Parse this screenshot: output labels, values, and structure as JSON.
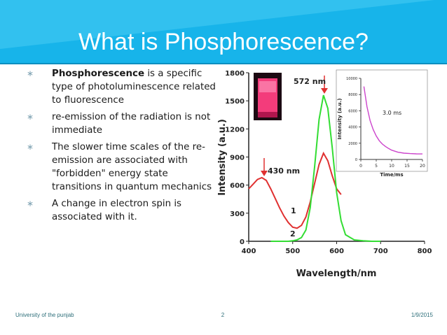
{
  "slide": {
    "title": "What is Phosphorescence?",
    "bullets": [
      {
        "bold": "Phosphorescence",
        "text": " is a specific type of photoluminescence related to fluorescence"
      },
      {
        "bold": "",
        "text": "re-emission of  the radiation is not immediate"
      },
      {
        "bold": "",
        "text": "The slower time scales of the re-emission are associated with \"forbidden\" energy state transitions in quantum mechanics"
      },
      {
        "bold": "",
        "text": "A change in electron spin is associated with it."
      }
    ],
    "bullet_icon": "asterisk-bullet-icon",
    "footer": {
      "left": "University of the punjab",
      "center": "2",
      "right": "1/9/2015"
    },
    "colors": {
      "title_band": "#17b4ea",
      "title_text": "#ffffff",
      "bullet": "#7fa3b3",
      "footer_text": "#2e6f7a"
    }
  },
  "chart_data": [
    {
      "type": "line",
      "title": "",
      "xlabel": "Wavelength/nm",
      "ylabel": "Intensity (a.u.)",
      "xlim": [
        400,
        800
      ],
      "ylim": [
        0,
        1800
      ],
      "xticks": [
        400,
        500,
        600,
        700,
        800
      ],
      "yticks": [
        0,
        300,
        600,
        900,
        1200,
        1500,
        1800
      ],
      "series": [
        {
          "name": "1",
          "color": "#e03030",
          "x": [
            400,
            410,
            420,
            430,
            440,
            450,
            460,
            470,
            480,
            490,
            500,
            510,
            520,
            530,
            540,
            550,
            560,
            570,
            580,
            590,
            600,
            610
          ],
          "y": [
            560,
            610,
            660,
            680,
            650,
            560,
            460,
            360,
            270,
            200,
            150,
            140,
            170,
            260,
            420,
            620,
            820,
            940,
            860,
            700,
            560,
            500
          ]
        },
        {
          "name": "2",
          "color": "#33dd33",
          "x": [
            450,
            470,
            490,
            500,
            510,
            520,
            530,
            540,
            550,
            560,
            570,
            580,
            590,
            600,
            610,
            620,
            640,
            660,
            680,
            700
          ],
          "y": [
            0,
            0,
            0,
            5,
            15,
            40,
            120,
            360,
            800,
            1300,
            1560,
            1420,
            1000,
            520,
            220,
            70,
            15,
            5,
            0,
            0
          ]
        }
      ],
      "annotations": [
        {
          "text": "572 nm",
          "x": 572,
          "y": 1560
        },
        {
          "text": "430 nm",
          "x": 430,
          "y": 680
        },
        {
          "text": "1",
          "x": 515,
          "y": 300
        },
        {
          "text": "2",
          "x": 510,
          "y": 100
        }
      ],
      "inset_photo": "cuvette-glow-photo",
      "inset_photo_colors": {
        "frame": "#1c0a12",
        "glow": "#ff3f82"
      }
    },
    {
      "type": "line",
      "title": "",
      "annotation": "3.0 ms",
      "xlabel": "Time/ms",
      "ylabel": "Intensity (a.u.)",
      "xlim": [
        0,
        20
      ],
      "ylim": [
        0,
        10000
      ],
      "xticks": [
        0,
        5,
        10,
        15,
        20
      ],
      "yticks": [
        0,
        2000,
        4000,
        6000,
        8000,
        10000
      ],
      "series": [
        {
          "name": "",
          "color": "#cc44cc",
          "x": [
            1,
            2,
            3,
            4,
            5,
            6,
            7,
            8,
            9,
            10,
            12,
            14,
            16,
            18,
            20
          ],
          "y": [
            9000,
            6500,
            4800,
            3700,
            2900,
            2300,
            1900,
            1600,
            1350,
            1150,
            900,
            780,
            720,
            690,
            680
          ]
        }
      ]
    }
  ]
}
